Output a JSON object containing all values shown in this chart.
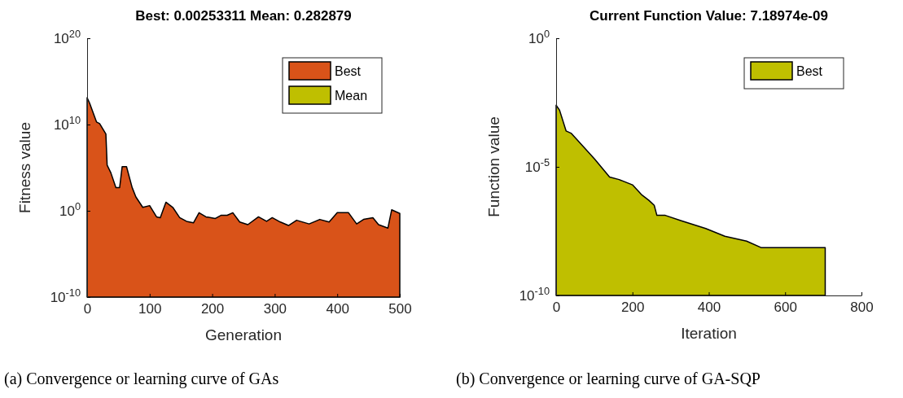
{
  "chart_data": [
    {
      "type": "area",
      "title": "Best: 0.00253311 Mean: 0.282879",
      "xlabel": "Generation",
      "ylabel": "Fitness value",
      "log": "y",
      "legend": "top right",
      "grid": false,
      "xlim": [
        0,
        500
      ],
      "xticks": [
        0,
        100,
        200,
        300,
        400,
        500
      ],
      "ylim": [
        1e-10,
        1e+20
      ],
      "yticks": [
        {
          "value": 1e-10,
          "label": "10$^{-10}$"
        },
        {
          "value": 1,
          "label": "10$^{0}$"
        },
        {
          "value": 10000000000.0,
          "label": "10$^{10}$"
        },
        {
          "value": 1e+20,
          "label": "10$^{20}$"
        }
      ],
      "annotations": [
        "(a) Convergence or learning curve of GAs"
      ],
      "series": [
        {
          "name": "Best",
          "color": "#d95319",
          "x": [
            0,
            4,
            15,
            20,
            30,
            32,
            38,
            46,
            52,
            56,
            63,
            72,
            78,
            89,
            100,
            111,
            117,
            126,
            137,
            148,
            159,
            170,
            179,
            190,
            205,
            214,
            224,
            233,
            244,
            257,
            274,
            287,
            296,
            309,
            322,
            335,
            355,
            372,
            387,
            400,
            418,
            431,
            442,
            457,
            466,
            481,
            487,
            500
          ],
          "values": [
            13000000000000.0,
            3000000000000.0,
            20000000000.0,
            13000000000.0,
            800000000.0,
            200000.0,
            25000.0,
            500,
            500,
            130000.0,
            130000.0,
            500,
            40,
            2.5,
            4,
            0.2,
            0.16,
            10,
            2.5,
            0.16,
            0.06,
            0.04,
            0.6,
            0.2,
            0.13,
            0.3,
            0.3,
            0.6,
            0.05,
            0.025,
            0.2,
            0.06,
            0.16,
            0.05,
            0.02,
            0.08,
            0.03,
            0.1,
            0.05,
            0.6,
            0.6,
            0.03,
            0.1,
            0.16,
            0.025,
            0.01,
            1.3,
            0.5
          ]
        },
        {
          "name": "Mean",
          "color": "#bfbf00"
        }
      ]
    },
    {
      "type": "area",
      "title": "Current Function Value: 7.18974e-09",
      "xlabel": "Iteration",
      "ylabel": "Function value",
      "log": "y",
      "legend": "top right",
      "grid": false,
      "xlim": [
        0,
        800
      ],
      "xticks": [
        0,
        200,
        400,
        600,
        800
      ],
      "ylim": [
        1e-10,
        1
      ],
      "yticks": [
        {
          "value": 1e-10,
          "label": "10$^{-10}$"
        },
        {
          "value": 1e-05,
          "label": "10$^{-5}$"
        },
        {
          "value": 1,
          "label": "10$^{0}$"
        }
      ],
      "annotations": [
        "(b) Convergence or learning curve of GA-SQP"
      ],
      "series": [
        {
          "name": "Best",
          "color": "#bfbf00",
          "x": [
            0,
            9,
            26,
            40,
            72,
            101,
            140,
            165,
            200,
            225,
            243,
            257,
            264,
            286,
            328,
            392,
            442,
            499,
            538,
            705
          ],
          "values": [
            0.0025,
            0.0016,
            0.00025,
            0.0002,
            6e-05,
            2e-05,
            4e-06,
            3.2e-06,
            2e-06,
            8e-07,
            5e-07,
            3.2e-07,
            1.3e-07,
            1.3e-07,
            8e-08,
            4e-08,
            2e-08,
            1.3e-08,
            7.19e-09,
            7.19e-09
          ]
        }
      ]
    }
  ]
}
